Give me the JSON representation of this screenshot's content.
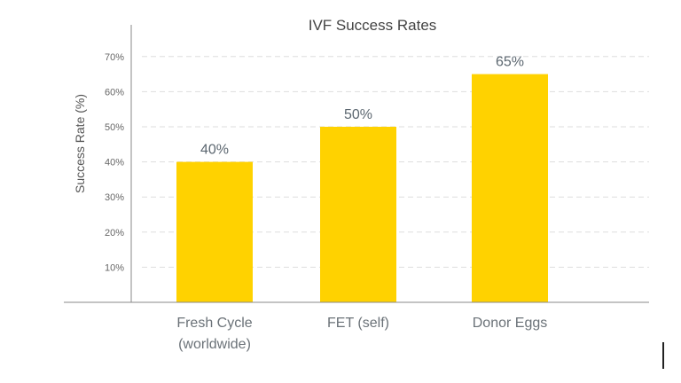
{
  "chart_data": {
    "type": "bar",
    "title": "IVF Success Rates",
    "xlabel": "",
    "ylabel": "Success Rate (%)",
    "categories": [
      [
        "Fresh Cycle",
        "(worldwide)"
      ],
      [
        "FET (self)"
      ],
      [
        "Donor Eggs"
      ]
    ],
    "values": [
      40,
      50,
      65
    ],
    "data_labels": [
      "40%",
      "50%",
      "65%"
    ],
    "yticks": [
      10,
      20,
      30,
      40,
      50,
      60,
      70
    ],
    "ytick_labels": [
      "10%",
      "20%",
      "30%",
      "40%",
      "50%",
      "60%",
      "70%"
    ],
    "ylim": [
      0,
      75
    ],
    "grid": true,
    "colors": {
      "bar": "#ffd200"
    }
  }
}
